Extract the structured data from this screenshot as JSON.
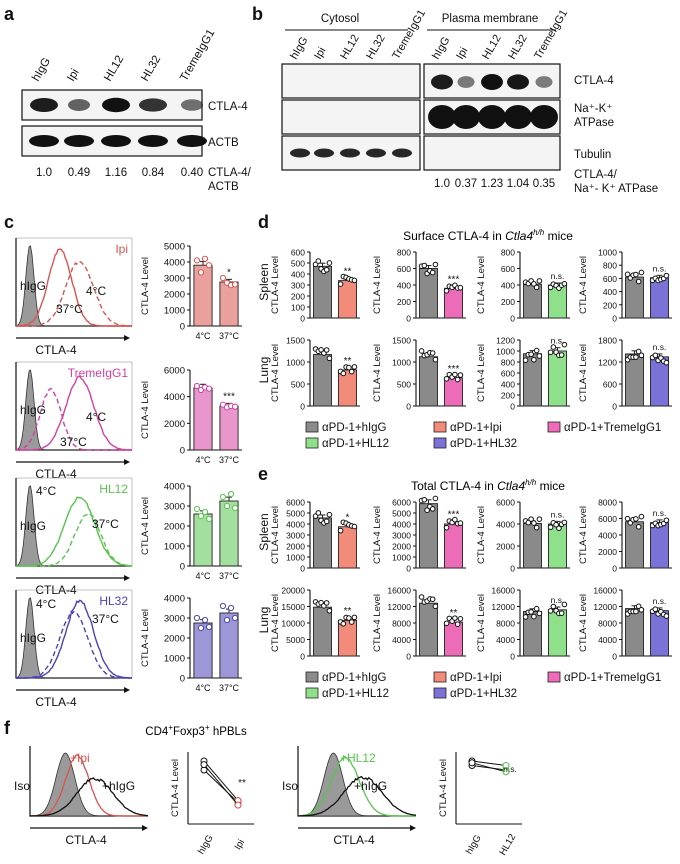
{
  "panels": {
    "a": {
      "letter": "a",
      "lanes": [
        "hIgG",
        "Ipi",
        "HL12",
        "HL32",
        "TremeIgG1"
      ],
      "blots": [
        "CTLA-4",
        "ACTB"
      ],
      "ratio_label": [
        "CTLA-4/",
        "ACTB"
      ],
      "ratios": [
        "1.0",
        "0.49",
        "1.16",
        "0.84",
        "0.40"
      ],
      "band_intensity": [
        1.0,
        0.49,
        1.16,
        0.84,
        0.4
      ]
    },
    "b": {
      "letter": "b",
      "group_labels": [
        "Cytosol",
        "Plasma membrane"
      ],
      "lanes_cytosol": [
        "hIgG",
        "Ipi",
        "HL12",
        "HL32",
        "TremeIgG1"
      ],
      "lanes_pm": [
        "hIgG",
        "Ipi",
        "HL12",
        "HL32",
        "TremeIgG1"
      ],
      "blots": [
        "CTLA-4",
        "Na⁺-K⁺",
        "ATPase",
        "Tubulin"
      ],
      "ratio_label": [
        "CTLA-4/",
        "Na⁺- K⁺ ATPase"
      ],
      "ratios": [
        "1.0",
        "0.37",
        "1.23",
        "1.04",
        "0.35"
      ],
      "band_intensity": [
        1.0,
        0.37,
        1.23,
        1.04,
        0.35
      ]
    },
    "c": {
      "letter": "c",
      "rows": [
        {
          "antibody": "Ipi",
          "color": "#d9534f",
          "iso": "hIgG",
          "xlabel": "CTLA-4",
          "temp_a": "4°C",
          "temp_b": "37°C",
          "bar_ylabel": "CTLA-4 Level",
          "yticks": [
            "0",
            "1000",
            "2000",
            "3000",
            "4000",
            "5000"
          ],
          "ymax": 5000,
          "values": [
            3800,
            2750
          ],
          "points": [
            [
              4100,
              3350,
              4200,
              3800
            ],
            [
              3000,
              2700,
              2550,
              2600
            ]
          ],
          "cats": [
            "4°C",
            "37°C"
          ],
          "sig": "*"
        },
        {
          "antibody": "TremeIgG1",
          "color": "#d63fa0",
          "iso": "hIgG",
          "xlabel": "CTLA-4",
          "temp_a": "4°C",
          "temp_b": "37°C",
          "bar_ylabel": "CTLA-4 Level",
          "yticks": [
            "0",
            "2000",
            "4000",
            "6000"
          ],
          "ymax": 6000,
          "values": [
            4650,
            3300
          ],
          "points": [
            [
              4800,
              4500,
              4700,
              4600
            ],
            [
              3400,
              3200,
              3300,
              3250
            ]
          ],
          "cats": [
            "4°C",
            "37°C"
          ],
          "sig": "***"
        },
        {
          "antibody": "HL12",
          "color": "#58c44e",
          "iso": "hIgG",
          "xlabel": "CTLA-4",
          "temp_a": "4°C",
          "temp_b": "37°C",
          "bar_ylabel": "CTLA-4 Level",
          "yticks": [
            "0",
            "1000",
            "2000",
            "3000",
            "4000"
          ],
          "ymax": 4000,
          "values": [
            2600,
            3250
          ],
          "points": [
            [
              2850,
              2500,
              2700,
              2350
            ],
            [
              3450,
              3000,
              3600,
              2900
            ]
          ],
          "cats": [
            "4°C",
            "37°C"
          ],
          "sig": ""
        },
        {
          "antibody": "HL32",
          "color": "#4a43b8",
          "iso": "hIgG",
          "xlabel": "CTLA-4",
          "temp_a": "4°C",
          "temp_b": "37°C",
          "bar_ylabel": "CTLA-4 Level",
          "yticks": [
            "0",
            "1000",
            "2000",
            "3000",
            "4000"
          ],
          "ymax": 4000,
          "values": [
            2750,
            3250
          ],
          "points": [
            [
              3000,
              2500,
              2900,
              2550
            ],
            [
              3600,
              2900,
              3500,
              3000
            ]
          ],
          "cats": [
            "4°C",
            "37°C"
          ],
          "sig": ""
        }
      ]
    },
    "d": {
      "letter": "d",
      "title_pre": "Surface CTLA-4 in ",
      "title_italic": "Ctla4",
      "title_sup": "h/h",
      "title_post": " mice",
      "row_labels": [
        "Spleen",
        "Lung"
      ],
      "ylabel": "CTLA-4 Level",
      "spleen": [
        {
          "yticks": [
            "0",
            "100",
            "200",
            "300",
            "400",
            "500",
            "600"
          ],
          "ymax": 600,
          "values": [
            470,
            340
          ],
          "sig": "**",
          "color": "#f28b7a"
        },
        {
          "yticks": [
            "0",
            "200",
            "400",
            "600",
            "800"
          ],
          "ymax": 800,
          "values": [
            600,
            360
          ],
          "sig": "***",
          "color": "#ec6cb8"
        },
        {
          "yticks": [
            "0",
            "200",
            "400",
            "600",
            "800"
          ],
          "ymax": 800,
          "values": [
            410,
            400
          ],
          "sig": "n.s.",
          "color": "#8fe08a"
        },
        {
          "yticks": [
            "0",
            "200",
            "400",
            "600",
            "800",
            "1000"
          ],
          "ymax": 1000,
          "values": [
            620,
            610
          ],
          "sig": "n.s.",
          "color": "#7b72d8"
        }
      ],
      "lung": [
        {
          "yticks": [
            "0",
            "500",
            "1000",
            "1500"
          ],
          "ymax": 1500,
          "values": [
            1170,
            820
          ],
          "sig": "**",
          "color": "#f28b7a"
        },
        {
          "yticks": [
            "0",
            "500",
            "1000",
            "1500"
          ],
          "ymax": 1500,
          "values": [
            1120,
            640
          ],
          "sig": "***",
          "color": "#ec6cb8"
        },
        {
          "yticks": [
            "0",
            "200",
            "400",
            "600",
            "800",
            "1000",
            "1200"
          ],
          "ymax": 1200,
          "values": [
            950,
            1000
          ],
          "sig": "n.s.",
          "color": "#8fe08a"
        },
        {
          "yticks": [
            "0",
            "600",
            "1200",
            "1800"
          ],
          "ymax": 1800,
          "values": [
            1420,
            1340
          ],
          "sig": "n.s.",
          "color": "#7b72d8"
        }
      ]
    },
    "e": {
      "letter": "e",
      "title_pre": "Total CTLA-4 in ",
      "title_italic": "Ctla4",
      "title_sup": "h/h",
      "title_post": " mice",
      "row_labels": [
        "Spleen",
        "Lung"
      ],
      "ylabel": "CTLA-4 Level",
      "spleen": [
        {
          "yticks": [
            "0",
            "1000",
            "2000",
            "3000",
            "4000",
            "5000",
            "6000"
          ],
          "ymax": 6000,
          "values": [
            4550,
            3750
          ],
          "sig": "*",
          "color": "#f28b7a"
        },
        {
          "yticks": [
            "0",
            "1000",
            "2000",
            "3000",
            "4000",
            "5000",
            "6000"
          ],
          "ymax": 6000,
          "values": [
            5850,
            4000
          ],
          "sig": "***",
          "color": "#ec6cb8"
        },
        {
          "yticks": [
            "0",
            "2000",
            "4000",
            "6000"
          ],
          "ymax": 6000,
          "values": [
            4050,
            4000
          ],
          "sig": "n.s.",
          "color": "#8fe08a"
        },
        {
          "yticks": [
            "0",
            "2000",
            "4000",
            "6000",
            "8000"
          ],
          "ymax": 8000,
          "values": [
            5600,
            5500
          ],
          "sig": "n.s.",
          "color": "#7b72d8"
        }
      ],
      "lung": [
        {
          "yticks": [
            "0",
            "5000",
            "10000",
            "15000",
            "20000"
          ],
          "ymax": 20000,
          "values": [
            14800,
            10800
          ],
          "sig": "**",
          "color": "#f28b7a"
        },
        {
          "yticks": [
            "0",
            "4000",
            "8000",
            "12000",
            "16000"
          ],
          "ymax": 16000,
          "values": [
            12800,
            8200
          ],
          "sig": "**",
          "color": "#ec6cb8"
        },
        {
          "yticks": [
            "0",
            "4000",
            "8000",
            "12000",
            "16000"
          ],
          "ymax": 16000,
          "values": [
            10800,
            11200
          ],
          "sig": "n.s.",
          "color": "#8fe08a"
        },
        {
          "yticks": [
            "0",
            "4000",
            "8000",
            "12000",
            "16000"
          ],
          "ymax": 16000,
          "values": [
            11500,
            11000
          ],
          "sig": "n.s.",
          "color": "#7b72d8"
        }
      ]
    },
    "legend": [
      {
        "label": "αPD-1+hIgG",
        "color": "#8a8a8a"
      },
      {
        "label": "αPD-1+Ipi",
        "color": "#f28b7a"
      },
      {
        "label": "αPD-1+TremeIgG1",
        "color": "#ec6cb8"
      },
      {
        "label": "αPD-1+HL12",
        "color": "#8fe08a"
      },
      {
        "label": "αPD-1+HL32",
        "color": "#7b72d8"
      }
    ],
    "f": {
      "letter": "f",
      "title_pre": "CD4",
      "title_sup1": "+",
      "title_mid": "Foxp3",
      "title_sup2": "+",
      "title_post": " hPBLs",
      "left": {
        "iso": "Iso",
        "treat": "+Ipi",
        "ref": "+hIgG",
        "color": "#d9534f",
        "xlabel": "CTLA-4",
        "ylabel": "CTLA-4 Level",
        "cats": [
          "hIgG",
          "Ipi"
        ],
        "sig": "**",
        "pairs": [
          [
            900,
            540
          ],
          [
            1000,
            560
          ],
          [
            960,
            510
          ]
        ]
      },
      "right": {
        "iso": "Iso",
        "treat": "+HL12",
        "ref": "+hIgG",
        "color": "#58c44e",
        "xlabel": "CTLA-4",
        "ylabel": "CTLA-4 Level",
        "cats": [
          "hIgG",
          "HL12"
        ],
        "sig": "n.s.",
        "pairs": [
          [
            950,
            900
          ],
          [
            1000,
            950
          ],
          [
            980,
            880
          ]
        ]
      }
    }
  }
}
